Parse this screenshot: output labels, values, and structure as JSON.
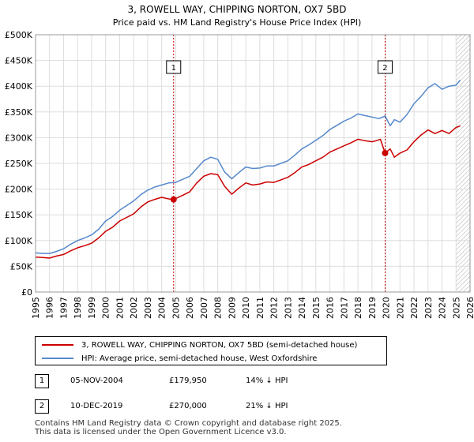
{
  "chart_data": {
    "type": "line",
    "title": "3, ROWELL WAY, CHIPPING NORTON, OX7 5BD",
    "subtitle": "Price paid vs. HM Land Registry's House Price Index (HPI)",
    "xlim": [
      1995,
      2026
    ],
    "ylim": [
      0,
      500000
    ],
    "x_ticks": [
      "1995",
      "1996",
      "1997",
      "1998",
      "1999",
      "2000",
      "2001",
      "2002",
      "2003",
      "2004",
      "2005",
      "2006",
      "2007",
      "2008",
      "2009",
      "2010",
      "2011",
      "2012",
      "2013",
      "2014",
      "2015",
      "2016",
      "2017",
      "2018",
      "2019",
      "2020",
      "2021",
      "2022",
      "2023",
      "2024",
      "2025",
      "2026"
    ],
    "y_ticks": [
      {
        "value": 0,
        "label": "£0"
      },
      {
        "value": 50000,
        "label": "£50K"
      },
      {
        "value": 100000,
        "label": "£100K"
      },
      {
        "value": 150000,
        "label": "£150K"
      },
      {
        "value": 200000,
        "label": "£200K"
      },
      {
        "value": 250000,
        "label": "£250K"
      },
      {
        "value": 300000,
        "label": "£300K"
      },
      {
        "value": 350000,
        "label": "£350K"
      },
      {
        "value": 400000,
        "label": "£400K"
      },
      {
        "value": 450000,
        "label": "£450K"
      },
      {
        "value": 500000,
        "label": "£500K"
      }
    ],
    "grid": true,
    "hatch_from": 2025.0,
    "series": [
      {
        "name": "3, ROWELL WAY, CHIPPING NORTON, OX7 5BD (semi-detached house)",
        "color": "#cc0000",
        "x": [
          1995.0,
          1995.5,
          1996.0,
          1996.5,
          1997.0,
          1997.5,
          1998.0,
          1998.5,
          1999.0,
          1999.5,
          2000.0,
          2000.5,
          2001.0,
          2001.5,
          2002.0,
          2002.5,
          2003.0,
          2003.5,
          2004.0,
          2004.5,
          2004.85,
          2005.5,
          2006.0,
          2006.5,
          2007.0,
          2007.5,
          2008.0,
          2008.5,
          2009.0,
          2009.5,
          2010.0,
          2010.5,
          2011.0,
          2011.5,
          2012.0,
          2012.5,
          2013.0,
          2013.5,
          2014.0,
          2014.5,
          2015.0,
          2015.5,
          2016.0,
          2016.5,
          2017.0,
          2017.5,
          2018.0,
          2018.5,
          2019.0,
          2019.3,
          2019.6,
          2019.94,
          2020.3,
          2020.6,
          2021.0,
          2021.5,
          2022.0,
          2022.5,
          2023.0,
          2023.5,
          2024.0,
          2024.5,
          2025.0,
          2025.3
        ],
        "values": [
          68000,
          67000,
          66000,
          70000,
          73000,
          80000,
          86000,
          90000,
          95000,
          105000,
          118000,
          126000,
          138000,
          145000,
          152000,
          165000,
          175000,
          180000,
          184000,
          181000,
          179950,
          188000,
          195000,
          212000,
          225000,
          230000,
          228000,
          205000,
          190000,
          202000,
          212000,
          208000,
          210000,
          214000,
          213000,
          218000,
          223000,
          232000,
          243000,
          248000,
          255000,
          262000,
          272000,
          278000,
          284000,
          290000,
          297000,
          294000,
          292000,
          294000,
          297000,
          270000,
          278000,
          262000,
          270000,
          276000,
          292000,
          305000,
          315000,
          308000,
          314000,
          308000,
          320000,
          323000
        ]
      },
      {
        "name": "HPI: Average price, semi-detached house, West Oxfordshire",
        "color": "#5588cc",
        "x": [
          1995.0,
          1995.5,
          1996.0,
          1996.5,
          1997.0,
          1997.5,
          1998.0,
          1998.5,
          1999.0,
          1999.5,
          2000.0,
          2000.5,
          2001.0,
          2001.5,
          2002.0,
          2002.5,
          2003.0,
          2003.5,
          2004.0,
          2004.5,
          2005.0,
          2005.5,
          2006.0,
          2006.5,
          2007.0,
          2007.5,
          2008.0,
          2008.5,
          2009.0,
          2009.5,
          2010.0,
          2010.5,
          2011.0,
          2011.5,
          2012.0,
          2012.5,
          2013.0,
          2013.5,
          2014.0,
          2014.5,
          2015.0,
          2015.5,
          2016.0,
          2016.5,
          2017.0,
          2017.5,
          2018.0,
          2018.5,
          2019.0,
          2019.5,
          2019.94,
          2020.3,
          2020.6,
          2021.0,
          2021.5,
          2022.0,
          2022.5,
          2023.0,
          2023.5,
          2024.0,
          2024.5,
          2025.0,
          2025.3
        ],
        "values": [
          76000,
          75000,
          75000,
          79000,
          84000,
          93000,
          100000,
          105000,
          111000,
          122000,
          138000,
          147000,
          159000,
          168000,
          177000,
          189000,
          198000,
          204000,
          208000,
          212000,
          213000,
          219000,
          225000,
          240000,
          255000,
          262000,
          258000,
          233000,
          220000,
          232000,
          243000,
          240000,
          241000,
          245000,
          245000,
          250000,
          255000,
          266000,
          278000,
          286000,
          295000,
          304000,
          316000,
          324000,
          332000,
          338000,
          346000,
          343000,
          340000,
          337000,
          342000,
          323000,
          335000,
          330000,
          345000,
          366000,
          380000,
          397000,
          405000,
          394000,
          400000,
          402000,
          412000
        ]
      }
    ],
    "sales": [
      {
        "id": "1",
        "x": 2004.85,
        "value": 179950,
        "date": "05-NOV-2004",
        "price": "£179,950",
        "hpi_diff": "14% ↓ HPI"
      },
      {
        "id": "2",
        "x": 2019.94,
        "value": 270000,
        "date": "10-DEC-2019",
        "price": "£270,000",
        "hpi_diff": "21% ↓ HPI"
      }
    ]
  },
  "legend": {
    "property_label": "3, ROWELL WAY, CHIPPING NORTON, OX7 5BD (semi-detached house)",
    "hpi_label": "HPI: Average price, semi-detached house, West Oxfordshire"
  },
  "footer": {
    "line1": "Contains HM Land Registry data © Crown copyright and database right 2025.",
    "line2": "This data is licensed under the Open Government Licence v3.0."
  }
}
